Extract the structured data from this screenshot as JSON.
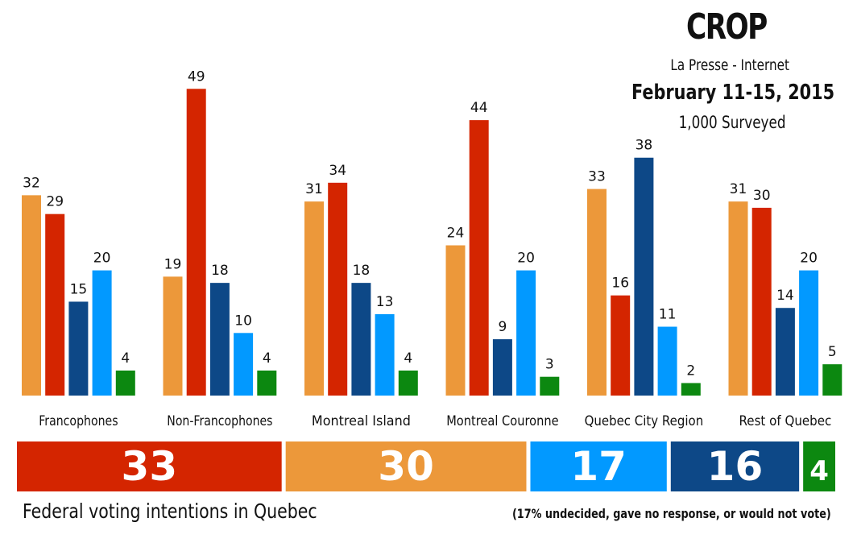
{
  "header": {
    "pollster": "CROP",
    "publication": "La Presse - Internet",
    "dates": "February 11-15, 2015",
    "sample": "1,000 Surveyed"
  },
  "caption": "Federal voting intentions in Quebec",
  "note": "(17% undecided, gave no response, or would not vote)",
  "chart_data": [
    {
      "type": "bar",
      "title": "",
      "categories": [
        "Francophones",
        "Non-Francophones",
        "Montreal Island",
        "Montreal Couronne",
        "Quebec City Region",
        "Rest of Quebec"
      ],
      "series": [
        {
          "color": "#ec983a",
          "values": [
            32,
            19,
            31,
            24,
            33,
            31
          ]
        },
        {
          "color": "#d42500",
          "values": [
            29,
            49,
            34,
            44,
            16,
            30
          ]
        },
        {
          "color": "#0d4887",
          "values": [
            15,
            18,
            18,
            9,
            38,
            14
          ]
        },
        {
          "color": "#0299ff",
          "values": [
            20,
            10,
            13,
            20,
            11,
            20
          ]
        },
        {
          "color": "#0c8810",
          "values": [
            4,
            4,
            4,
            3,
            2,
            5
          ]
        }
      ],
      "ylim": [
        0,
        50
      ],
      "grid": false,
      "legend": "none"
    },
    {
      "type": "bar",
      "orientation": "horizontal-stacked",
      "title": "",
      "segments": [
        {
          "value": 33,
          "color": "#d42500"
        },
        {
          "value": 30,
          "color": "#ec983a"
        },
        {
          "value": 17,
          "color": "#0299ff"
        },
        {
          "value": 16,
          "color": "#0d4887"
        },
        {
          "value": 4,
          "color": "#0c8810"
        }
      ]
    }
  ]
}
